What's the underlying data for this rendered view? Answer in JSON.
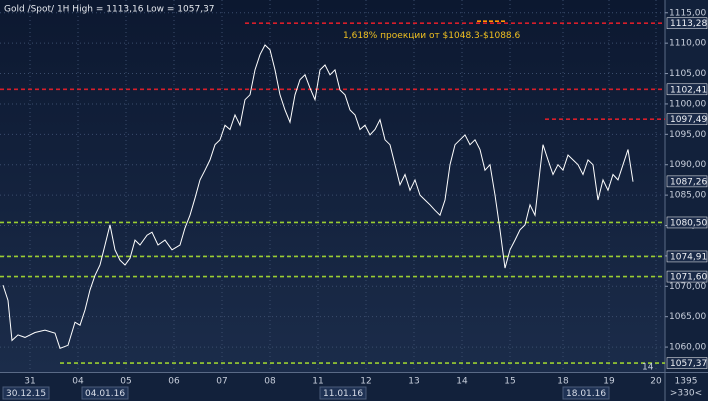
{
  "chart_data": {
    "type": "line",
    "title": "Gold /Spot/ 1H High = 1113,16 Low = 1057,37",
    "annotation": {
      "text": "1,618% проекции от $1048.3-$1088.6",
      "x": 171.5,
      "y": 1111.3
    },
    "xlim": [
      0,
      332.5
    ],
    "ylim": [
      1055.9,
      1117.1
    ],
    "grid": true,
    "yticks": [
      {
        "value": 1060,
        "label": "1060,00"
      },
      {
        "value": 1065,
        "label": "1065,00"
      },
      {
        "value": 1070,
        "label": "1070,00"
      },
      {
        "value": 1075,
        "label": "1075,00"
      },
      {
        "value": 1080,
        "label": "1080,00"
      },
      {
        "value": 1085,
        "label": "1085,00"
      },
      {
        "value": 1090,
        "label": "1090,00"
      },
      {
        "value": 1095,
        "label": "1095,00"
      },
      {
        "value": 1100,
        "label": "1100,00"
      },
      {
        "value": 1105,
        "label": "1105,00"
      },
      {
        "value": 1110,
        "label": "1110,00"
      },
      {
        "value": 1115,
        "label": "1115,00"
      }
    ],
    "xticks": [
      {
        "value": 15,
        "label": "31"
      },
      {
        "value": 39,
        "label": "04"
      },
      {
        "value": 63,
        "label": "05"
      },
      {
        "value": 87,
        "label": "06"
      },
      {
        "value": 111,
        "label": "07"
      },
      {
        "value": 135,
        "label": "08"
      },
      {
        "value": 159,
        "label": "11"
      },
      {
        "value": 183,
        "label": "12"
      },
      {
        "value": 207,
        "label": "13"
      },
      {
        "value": 231,
        "label": "14"
      },
      {
        "value": 255,
        "label": "15"
      },
      {
        "value": 281.5,
        "label": "18"
      },
      {
        "value": 304.5,
        "label": "19"
      },
      {
        "value": 328,
        "label": "20"
      }
    ],
    "date_ticks": [
      {
        "value": 2.5,
        "label": "30.12.15"
      },
      {
        "value": 42,
        "label": "04.01.16"
      },
      {
        "value": 161,
        "label": "11.01.16"
      },
      {
        "value": 282.5,
        "label": "18.01.16"
      }
    ],
    "corner_label": "14",
    "bottom_right": [
      "1395",
      ">330<"
    ],
    "levels": [
      {
        "value": 1113.28,
        "label": "1113,28",
        "color": "#d81e2a",
        "from": 122.5
      },
      {
        "value": 1102.41,
        "label": "1102,41",
        "color": "#d81e2a",
        "from": 0
      },
      {
        "value": 1097.49,
        "label": "1097,49",
        "color": "#d81e2a",
        "from": 272.5
      },
      {
        "value": 1080.5,
        "label": "1080,50",
        "color": "#9acd32",
        "from": 0
      },
      {
        "value": 1074.91,
        "label": "1074,91",
        "color": "#9acd32",
        "from": 0
      },
      {
        "value": 1071.6,
        "label": "1071,60",
        "color": "#9acd32",
        "from": 0
      },
      {
        "value": 1057.37,
        "label": "1057,37",
        "color": "#9acd32",
        "from": 30
      }
    ],
    "last_price": {
      "value": 1087.26,
      "label": "1087,26"
    },
    "series": [
      {
        "color": "#ffffff",
        "x": [
          1.5,
          4,
          6,
          9,
          12.5,
          17.5,
          22.5,
          27.5,
          30,
          34,
          37.5,
          40,
          42.5,
          45,
          47.5,
          50,
          52.5,
          55,
          57.5,
          60,
          62.5,
          65,
          67.5,
          70,
          73.5,
          76,
          79,
          82.5,
          86,
          90,
          92.5,
          95,
          97.5,
          100,
          102.5,
          105,
          107.5,
          110,
          112.5,
          115,
          117.5,
          120,
          122.5,
          125,
          127.5,
          130,
          132.5,
          135,
          137.5,
          140,
          142.5,
          145,
          147.5,
          150,
          152.5,
          155,
          157.5,
          160,
          162.5,
          165,
          167.5,
          170,
          172.5,
          175,
          177.5,
          180,
          182.5,
          185,
          187.5,
          190,
          192.5,
          195,
          197.5,
          200,
          202.5,
          205,
          207.5,
          210,
          212.5,
          215,
          217.5,
          220,
          222.5,
          225,
          227.5,
          230,
          232.5,
          235,
          237.5,
          240,
          242.5,
          245,
          247.5,
          250,
          252.5,
          255,
          257.5,
          260,
          262.5,
          265,
          267.5,
          270,
          271.5,
          274,
          276.5,
          279,
          281.5,
          284,
          286.5,
          289,
          291.5,
          294,
          296.5,
          299,
          301.5,
          304,
          306.5,
          309,
          311.5,
          314,
          316.5
        ],
        "values": [
          1070.2,
          1067.7,
          1061.1,
          1062,
          1061.6,
          1062.4,
          1062.8,
          1062.3,
          1059.8,
          1060.3,
          1064.1,
          1063.6,
          1066.1,
          1069.4,
          1071.8,
          1073.5,
          1076.8,
          1080.1,
          1076,
          1074.3,
          1073.5,
          1074.6,
          1077.6,
          1076.8,
          1078.4,
          1078.9,
          1076.8,
          1077.6,
          1076,
          1076.8,
          1079.6,
          1081.7,
          1084.5,
          1087.5,
          1089.1,
          1090.8,
          1093.3,
          1094.1,
          1096.5,
          1095.8,
          1098.2,
          1096.5,
          1100.7,
          1101.5,
          1105.6,
          1108.1,
          1109.7,
          1108.9,
          1105.6,
          1101.5,
          1099,
          1097,
          1101.5,
          1104,
          1104.8,
          1102.6,
          1100.7,
          1105.6,
          1106.4,
          1104.8,
          1105.6,
          1102.3,
          1101.5,
          1099,
          1098.2,
          1095.8,
          1096.5,
          1094.9,
          1095.8,
          1097.4,
          1094.1,
          1093.3,
          1090,
          1086.7,
          1088.4,
          1085.8,
          1087.5,
          1085,
          1084.2,
          1083.4,
          1082.5,
          1081.7,
          1084.2,
          1090,
          1093.3,
          1094.1,
          1094.9,
          1093.3,
          1094.1,
          1092.5,
          1089.1,
          1090,
          1085,
          1079.3,
          1073,
          1076,
          1077.6,
          1079.3,
          1080.1,
          1083.4,
          1081.7,
          1089.1,
          1093.3,
          1090.8,
          1088.4,
          1090,
          1089.1,
          1091.6,
          1090.8,
          1090,
          1088.4,
          1090.8,
          1090,
          1084.2,
          1087.5,
          1085.8,
          1088.4,
          1087.5,
          1090,
          1092.5,
          1087.2
        ]
      }
    ]
  }
}
